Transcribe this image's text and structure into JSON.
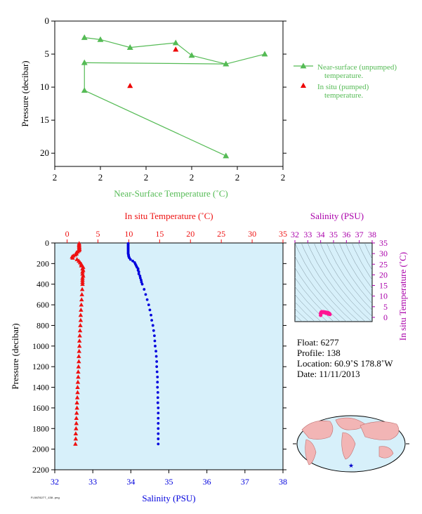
{
  "chart_data": [
    {
      "type": "line",
      "panel": "near-surface",
      "xlabel": "Near-Surface Temperature (˚C)",
      "ylabel": "Pressure (decibar)",
      "x_tick_labels": [
        "2",
        "2",
        "2",
        "2",
        "2",
        "2"
      ],
      "x_tick_positions": [
        1.9,
        1.92,
        1.94,
        1.96,
        1.98,
        2.0
      ],
      "xlim": [
        1.9,
        2.0
      ],
      "ylim": [
        22,
        0
      ],
      "yticks": [
        0,
        5,
        10,
        15,
        20
      ],
      "colors": {
        "unpumped": "#55bb55",
        "pumped": "#ee0000"
      },
      "legend": {
        "placement": "right"
      },
      "series": [
        {
          "name": "Near-surface (unpumped) temperature.",
          "marker": "triangle-open",
          "x": [
            1.913,
            1.92,
            1.933,
            1.953,
            1.96,
            1.975,
            1.992,
            1.975,
            1.913,
            1.913,
            1.975
          ],
          "y": [
            2.5,
            2.8,
            4.0,
            3.3,
            5.2,
            6.5,
            5.0,
            6.5,
            6.3,
            10.5,
            20.4
          ]
        },
        {
          "name": "In situ (pumped) temperature.",
          "marker": "triangle-filled",
          "x": [
            1.953,
            1.933
          ],
          "y": [
            4.3,
            9.8
          ]
        }
      ]
    },
    {
      "type": "scatter",
      "panel": "profile",
      "ylabel": "Pressure (decibar)",
      "top_axis_label": "In situ Temperature (˚C)",
      "bottom_axis_label": "Salinity (PSU)",
      "temp_range": [
        -2,
        35
      ],
      "temp_ticks": [
        0,
        5,
        10,
        15,
        20,
        25,
        30,
        35
      ],
      "sal_range": [
        32,
        38
      ],
      "sal_ticks": [
        32,
        33,
        34,
        35,
        36,
        37,
        38
      ],
      "ylim": [
        2200,
        0
      ],
      "yticks": [
        0,
        200,
        400,
        600,
        800,
        1000,
        1200,
        1400,
        1600,
        1800,
        2000,
        2200
      ],
      "colors": {
        "temperature": "#ee1111",
        "salinity": "#0000dd",
        "background": "#d7f0fa"
      },
      "series": [
        {
          "name": "Temperature",
          "pressure": [
            5,
            15,
            25,
            35,
            45,
            55,
            65,
            75,
            85,
            95,
            105,
            115,
            125,
            135,
            145,
            160,
            175,
            190,
            205,
            220,
            235,
            250,
            265,
            280,
            300,
            320,
            340,
            360,
            380,
            400,
            450,
            500,
            550,
            600,
            650,
            700,
            750,
            800,
            850,
            900,
            950,
            1000,
            1050,
            1100,
            1150,
            1200,
            1250,
            1300,
            1350,
            1400,
            1450,
            1500,
            1550,
            1600,
            1650,
            1700,
            1750,
            1800,
            1850,
            1900,
            1950
          ],
          "temperature": [
            1.95,
            1.95,
            1.95,
            1.96,
            1.97,
            1.98,
            2.0,
            1.9,
            1.7,
            1.5,
            1.5,
            1.3,
            1.0,
            0.8,
            0.9,
            1.6,
            1.9,
            2.1,
            2.3,
            2.3,
            2.6,
            2.5,
            2.6,
            2.5,
            2.5,
            2.6,
            2.5,
            2.5,
            2.5,
            2.5,
            2.45,
            2.4,
            2.35,
            2.3,
            2.25,
            2.2,
            2.2,
            2.15,
            2.1,
            2.05,
            2.0,
            2.0,
            1.95,
            1.9,
            1.9,
            1.85,
            1.8,
            1.8,
            1.75,
            1.7,
            1.7,
            1.65,
            1.6,
            1.6,
            1.55,
            1.5,
            1.5,
            1.45,
            1.4,
            1.4,
            1.35
          ]
        },
        {
          "name": "Salinity",
          "pressure": [
            5,
            15,
            25,
            35,
            45,
            55,
            65,
            75,
            85,
            95,
            105,
            115,
            125,
            135,
            145,
            160,
            175,
            190,
            205,
            220,
            235,
            250,
            265,
            280,
            300,
            320,
            340,
            360,
            380,
            400,
            450,
            500,
            550,
            600,
            650,
            700,
            750,
            800,
            850,
            900,
            950,
            1000,
            1050,
            1100,
            1150,
            1200,
            1250,
            1300,
            1350,
            1400,
            1450,
            1500,
            1550,
            1600,
            1650,
            1700,
            1750,
            1800,
            1850,
            1900,
            1950
          ],
          "salinity": [
            33.93,
            33.93,
            33.93,
            33.93,
            33.93,
            33.93,
            33.93,
            33.93,
            33.93,
            33.93,
            33.93,
            33.94,
            33.94,
            33.95,
            33.96,
            33.99,
            34.05,
            34.1,
            34.12,
            34.14,
            34.16,
            34.19,
            34.19,
            34.21,
            34.21,
            34.24,
            34.25,
            34.27,
            34.28,
            34.3,
            34.35,
            34.39,
            34.43,
            34.47,
            34.5,
            34.53,
            34.55,
            34.58,
            34.6,
            34.62,
            34.63,
            34.64,
            34.66,
            34.67,
            34.68,
            34.68,
            34.69,
            34.7,
            34.7,
            34.7,
            34.71,
            34.71,
            34.71,
            34.72,
            34.72,
            34.72,
            34.72,
            34.72,
            34.72,
            34.72,
            34.72
          ]
        }
      ]
    },
    {
      "type": "scatter",
      "panel": "T-S diagram",
      "top_axis_label": "Salinity (PSU)",
      "right_axis_label": "In situ Temperature (˚C)",
      "sal_range": [
        32,
        38
      ],
      "sal_ticks": [
        32,
        33,
        34,
        35,
        36,
        37,
        38
      ],
      "temp_range": [
        -2,
        35
      ],
      "temp_ticks": [
        0,
        5,
        10,
        15,
        20,
        25,
        30,
        35
      ],
      "colors": {
        "points": "#ff1493",
        "axes": "#aa00aa",
        "background": "#d7f0fa"
      },
      "points_x": [
        34.0,
        34.05,
        34.1,
        34.2,
        34.3,
        34.4,
        34.5,
        34.6,
        34.68,
        34.72,
        34.6,
        34.4,
        34.2,
        34.0
      ],
      "points_y": [
        1.9,
        2.5,
        2.6,
        2.6,
        2.5,
        2.4,
        2.3,
        2.1,
        1.8,
        1.4,
        1.6,
        2.0,
        2.3,
        1.0
      ]
    }
  ],
  "info": {
    "float": "Float:  6277",
    "profile": "Profile:  138",
    "location": "Location:  60.9˚S  178.8˚W",
    "date": "Date:  11/11/2013"
  },
  "footer": "FLOAT6277_138.png"
}
